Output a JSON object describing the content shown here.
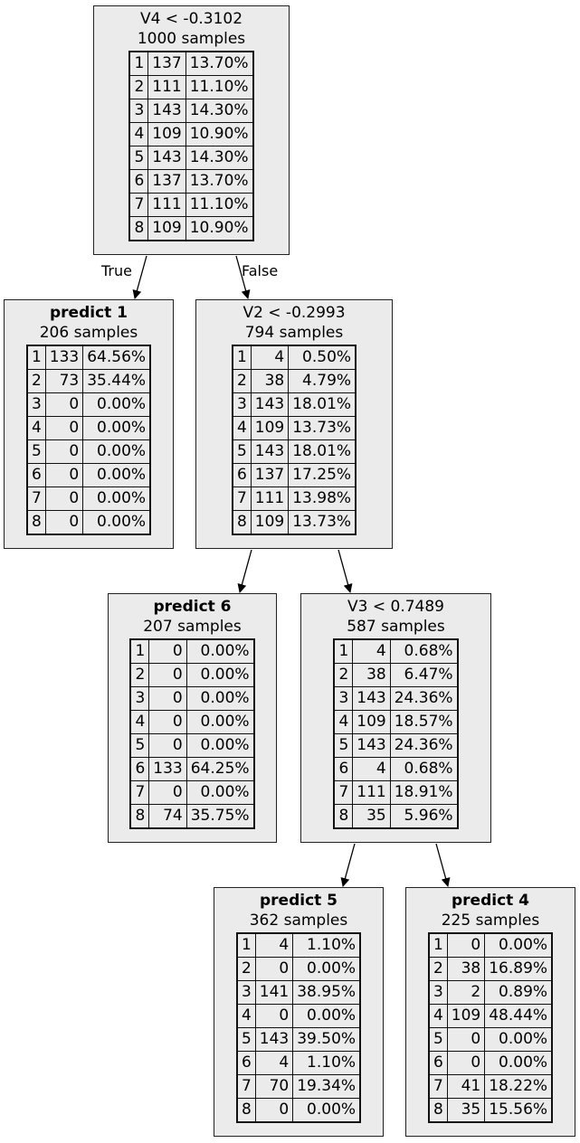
{
  "edge_labels": {
    "true_label": "True",
    "false_label": "False"
  },
  "nodes": {
    "root": {
      "title": "V4 < -0.3102",
      "samples": "1000 samples",
      "rows": [
        [
          "1",
          "137",
          "13.70%"
        ],
        [
          "2",
          "111",
          "11.10%"
        ],
        [
          "3",
          "143",
          "14.30%"
        ],
        [
          "4",
          "109",
          "10.90%"
        ],
        [
          "5",
          "143",
          "14.30%"
        ],
        [
          "6",
          "137",
          "13.70%"
        ],
        [
          "7",
          "111",
          "11.10%"
        ],
        [
          "8",
          "109",
          "10.90%"
        ]
      ]
    },
    "leaf1": {
      "title": "predict 1",
      "samples": "206 samples",
      "rows": [
        [
          "1",
          "133",
          "64.56%"
        ],
        [
          "2",
          "73",
          "35.44%"
        ],
        [
          "3",
          "0",
          "0.00%"
        ],
        [
          "4",
          "0",
          "0.00%"
        ],
        [
          "5",
          "0",
          "0.00%"
        ],
        [
          "6",
          "0",
          "0.00%"
        ],
        [
          "7",
          "0",
          "0.00%"
        ],
        [
          "8",
          "0",
          "0.00%"
        ]
      ]
    },
    "split2": {
      "title": "V2 < -0.2993",
      "samples": "794 samples",
      "rows": [
        [
          "1",
          "4",
          "0.50%"
        ],
        [
          "2",
          "38",
          "4.79%"
        ],
        [
          "3",
          "143",
          "18.01%"
        ],
        [
          "4",
          "109",
          "13.73%"
        ],
        [
          "5",
          "143",
          "18.01%"
        ],
        [
          "6",
          "137",
          "17.25%"
        ],
        [
          "7",
          "111",
          "13.98%"
        ],
        [
          "8",
          "109",
          "13.73%"
        ]
      ]
    },
    "leaf6": {
      "title": "predict 6",
      "samples": "207 samples",
      "rows": [
        [
          "1",
          "0",
          "0.00%"
        ],
        [
          "2",
          "0",
          "0.00%"
        ],
        [
          "3",
          "0",
          "0.00%"
        ],
        [
          "4",
          "0",
          "0.00%"
        ],
        [
          "5",
          "0",
          "0.00%"
        ],
        [
          "6",
          "133",
          "64.25%"
        ],
        [
          "7",
          "0",
          "0.00%"
        ],
        [
          "8",
          "74",
          "35.75%"
        ]
      ]
    },
    "split3": {
      "title": "V3 < 0.7489",
      "samples": "587 samples",
      "rows": [
        [
          "1",
          "4",
          "0.68%"
        ],
        [
          "2",
          "38",
          "6.47%"
        ],
        [
          "3",
          "143",
          "24.36%"
        ],
        [
          "4",
          "109",
          "18.57%"
        ],
        [
          "5",
          "143",
          "24.36%"
        ],
        [
          "6",
          "4",
          "0.68%"
        ],
        [
          "7",
          "111",
          "18.91%"
        ],
        [
          "8",
          "35",
          "5.96%"
        ]
      ]
    },
    "leaf5": {
      "title": "predict 5",
      "samples": "362 samples",
      "rows": [
        [
          "1",
          "4",
          "1.10%"
        ],
        [
          "2",
          "0",
          "0.00%"
        ],
        [
          "3",
          "141",
          "38.95%"
        ],
        [
          "4",
          "0",
          "0.00%"
        ],
        [
          "5",
          "143",
          "39.50%"
        ],
        [
          "6",
          "4",
          "1.10%"
        ],
        [
          "7",
          "70",
          "19.34%"
        ],
        [
          "8",
          "0",
          "0.00%"
        ]
      ]
    },
    "leaf4": {
      "title": "predict 4",
      "samples": "225 samples",
      "rows": [
        [
          "1",
          "0",
          "0.00%"
        ],
        [
          "2",
          "38",
          "16.89%"
        ],
        [
          "3",
          "2",
          "0.89%"
        ],
        [
          "4",
          "109",
          "48.44%"
        ],
        [
          "5",
          "0",
          "0.00%"
        ],
        [
          "6",
          "0",
          "0.00%"
        ],
        [
          "7",
          "41",
          "18.22%"
        ],
        [
          "8",
          "35",
          "15.56%"
        ]
      ]
    }
  }
}
